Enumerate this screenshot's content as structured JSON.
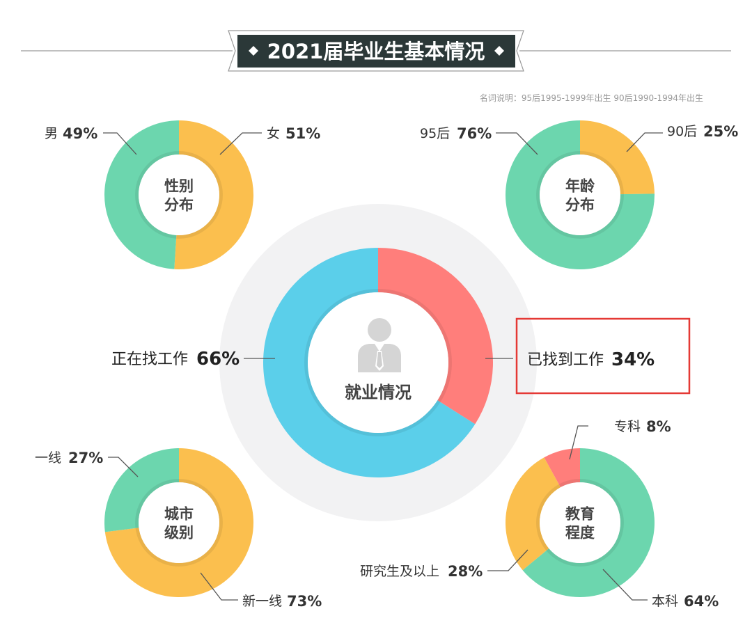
{
  "title": "2021届毕业生基本情况",
  "note": "名词说明：95后1995-1999年出生  90后1990-1994年出生",
  "colors": {
    "green": "#6cd6ae",
    "yellow": "#fbbf4e",
    "blue": "#5bcfea",
    "red": "#ff7e7b",
    "halo": "#f2f2f3",
    "title_bg": "#2b3838",
    "highlight_box": "#e53935"
  },
  "highlight_icon": "person-with-tie-icon",
  "chart_data": [
    {
      "type": "pie",
      "title": "性别分布",
      "center_lines": [
        "性别",
        "分布"
      ],
      "slices": [
        {
          "label": "女",
          "value": 51,
          "pct_text": "51%",
          "color": "#fbbf4e"
        },
        {
          "label": "男",
          "value": 49,
          "pct_text": "49%",
          "color": "#6cd6ae"
        }
      ]
    },
    {
      "type": "pie",
      "title": "年龄分布",
      "center_lines": [
        "年龄",
        "分布"
      ],
      "slices": [
        {
          "label": "90后",
          "value": 25,
          "pct_text": "25%",
          "color": "#fbbf4e"
        },
        {
          "label": "95后",
          "value": 76,
          "pct_text": "76%",
          "color": "#6cd6ae"
        }
      ]
    },
    {
      "type": "pie",
      "title": "就业情况",
      "center_lines": [
        "就业情况"
      ],
      "slices": [
        {
          "label": "已找到工作",
          "value": 34,
          "pct_text": "34%",
          "color": "#ff7e7b"
        },
        {
          "label": "正在找工作",
          "value": 66,
          "pct_text": "66%",
          "color": "#5bcfea"
        }
      ]
    },
    {
      "type": "pie",
      "title": "城市级别",
      "center_lines": [
        "城市",
        "级别"
      ],
      "slices": [
        {
          "label": "新一线",
          "value": 73,
          "pct_text": "73%",
          "color": "#fbbf4e"
        },
        {
          "label": "一线",
          "value": 27,
          "pct_text": "27%",
          "color": "#6cd6ae"
        }
      ]
    },
    {
      "type": "pie",
      "title": "教育程度",
      "center_lines": [
        "教育",
        "程度"
      ],
      "slices": [
        {
          "label": "本科",
          "value": 64,
          "pct_text": "64%",
          "color": "#6cd6ae"
        },
        {
          "label": "研究生及以上",
          "value": 28,
          "pct_text": "28%",
          "color": "#fbbf4e"
        },
        {
          "label": "专科",
          "value": 8,
          "pct_text": "8%",
          "color": "#ff7e7b"
        }
      ]
    }
  ]
}
